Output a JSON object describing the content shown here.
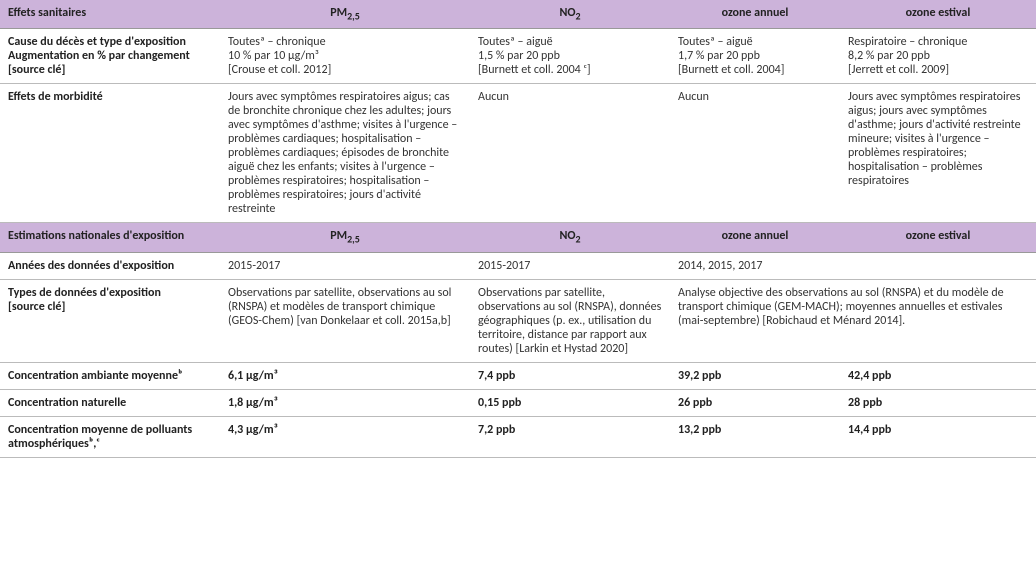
{
  "headers1": {
    "label": "Effets sanitaires",
    "pm": "PM",
    "pm_sub": "2,5",
    "no2": "NO",
    "no2_sub": "2",
    "oz_annual": "ozone annuel",
    "oz_summer": "ozone estival"
  },
  "rows1": {
    "cause": {
      "label": "Cause du décès et type d'exposition\nAugmentation en % par changement\n[source clé]",
      "pm": "Toutesª – chronique\n10 % par 10 µg/m³\n[Crouse et coll. 2012]",
      "no2": "Toutesª – aiguë\n1,5 % par 20 ppb\n[Burnett et coll. 2004 ᶜ]",
      "oz_annual": "Toutesª – aiguë\n1,7 % par 20 ppb\n[Burnett et coll. 2004]",
      "oz_summer": "Respiratoire – chronique\n8,2 % par 20 ppb\n[Jerrett et coll. 2009]"
    },
    "morbidity": {
      "label": "Effets de morbidité",
      "pm": "Jours avec symptômes respiratoires aigus; cas de bronchite chronique chez les adultes; jours avec symptômes d'asthme; visites à l'urgence – problèmes cardiaques; hospitalisation – problèmes cardiaques; épisodes de bronchite aiguë chez les enfants; visites à l'urgence – problèmes respiratoires; hospitalisation – problèmes respiratoires; jours d'activité restreinte",
      "no2": "Aucun",
      "oz_annual": "Aucun",
      "oz_summer": "Jours avec symptômes respiratoires aigus; jours avec symptômes d'asthme; jours d'activité restreinte mineure; visites à l'urgence – problèmes respiratoires; hospitalisation – problèmes respiratoires"
    }
  },
  "headers2": {
    "label": "Estimations nationales d'exposition",
    "pm": "PM",
    "pm_sub": "2,5",
    "no2": "NO",
    "no2_sub": "2",
    "oz_annual": "ozone annuel",
    "oz_summer": "ozone estival"
  },
  "rows2": {
    "years": {
      "label": "Années des données d'exposition",
      "pm": "2015-2017",
      "no2": "2015-2017",
      "oz_merged": "2014, 2015, 2017"
    },
    "types": {
      "label": "Types de données d'exposition\n[source clé]",
      "pm": "Observations par satellite, observations au sol (RNSPA) et modèles de transport chimique (GEOS-Chem) [van Donkelaar et coll. 2015a,b]",
      "no2": "Observations par satellite, observations au sol (RNSPA), données géographiques (p. ex., utilisation du territoire, distance par rapport aux routes) [Larkin et Hystad 2020]",
      "oz_merged": "Analyse objective des observations au sol (RNSPA) et du modèle de transport chimique (GEM-MACH); moyennes annuelles et estivales (mai-septembre) [Robichaud et Ménard 2014]."
    },
    "ambient": {
      "label": "Concentration ambiante moyenneᵇ",
      "pm": "6,1 µg/m³",
      "no2": "7,4 ppb",
      "oz_annual": "39,2 ppb",
      "oz_summer": "42,4 ppb"
    },
    "natural": {
      "label": "Concentration naturelle",
      "pm": "1,8 µg/m³",
      "no2": "0,15 ppb",
      "oz_annual": "26 ppb",
      "oz_summer": "28 ppb"
    },
    "pollutants": {
      "label": "Concentration moyenne de polluants atmosphériquesᵇ,ᶜ",
      "pm": "4,3 µg/m³",
      "no2": "7,2 ppb",
      "oz_annual": "13,2 ppb",
      "oz_summer": "14,4 ppb"
    }
  },
  "footnote": ""
}
